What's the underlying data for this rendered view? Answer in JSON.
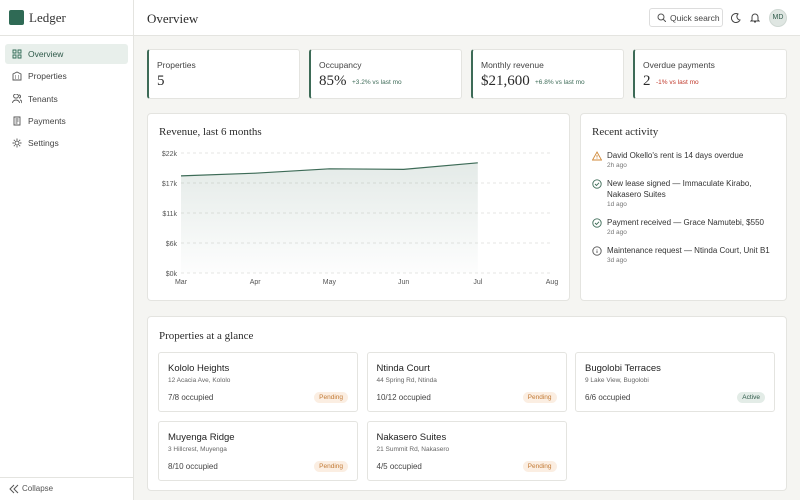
{
  "brand": "Ledger",
  "nav": [
    "Overview",
    "Properties",
    "Tenants",
    "Payments",
    "Settings"
  ],
  "collapse": "Collapse",
  "header": {
    "title": "Overview",
    "search": "Quick search",
    "avatar": "MD"
  },
  "stats": [
    {
      "label": "Properties",
      "value": "5"
    },
    {
      "label": "Occupancy",
      "value": "85%",
      "delta": "+3.2% vs last mo"
    },
    {
      "label": "Monthly revenue",
      "value": "$21,600",
      "delta": "+6.8% vs last mo"
    },
    {
      "label": "Overdue payments",
      "value": "2",
      "delta": "-1% vs last mo"
    }
  ],
  "chart": {
    "type": "line",
    "title": "Revenue, last 6 months",
    "categories": [
      "Mar",
      "Apr",
      "May",
      "Jun",
      "Jul",
      "Aug"
    ],
    "values": [
      17800,
      18300,
      19100,
      19000,
      20200,
      null
    ],
    "color": "#3d6b57",
    "ylim": [
      0,
      22000
    ],
    "yticks": [
      {
        "value": 0,
        "label": "$0k"
      },
      {
        "value": 5500,
        "label": "$6k"
      },
      {
        "value": 11000,
        "label": "$11k"
      },
      {
        "value": 16500,
        "label": "$17k"
      },
      {
        "value": 22000,
        "label": "$22k"
      }
    ],
    "grid": true
  },
  "activity": {
    "title": "Recent activity",
    "items": [
      {
        "text": "David Okello's rent is 14 days overdue",
        "time": "2h ago"
      },
      {
        "text": "New lease signed — Immaculate Kirabo, Nakasero Suites",
        "time": "1d ago"
      },
      {
        "text": "Payment received — Grace Namutebi, $550",
        "time": "2d ago"
      },
      {
        "text": "Maintenance request — Ntinda Court, Unit B1",
        "time": "3d ago"
      }
    ]
  },
  "properties": {
    "title": "Properties at a glance",
    "items": [
      {
        "name": "Kololo Heights",
        "address": "12 Acacia Ave, Kololo",
        "occupancy": "7/8 occupied",
        "status": "Pending"
      },
      {
        "name": "Ntinda Court",
        "address": "44 Spring Rd, Ntinda",
        "occupancy": "10/12 occupied",
        "status": "Pending"
      },
      {
        "name": "Bugolobi Terraces",
        "address": "9 Lake View, Bugolobi",
        "occupancy": "6/6 occupied",
        "status": "Active"
      },
      {
        "name": "Muyenga Ridge",
        "address": "3 Hillcrest, Muyenga",
        "occupancy": "8/10 occupied",
        "status": "Pending"
      },
      {
        "name": "Nakasero Suites",
        "address": "21 Summit Rd, Nakasero",
        "occupancy": "4/5 occupied",
        "status": "Pending"
      }
    ]
  }
}
